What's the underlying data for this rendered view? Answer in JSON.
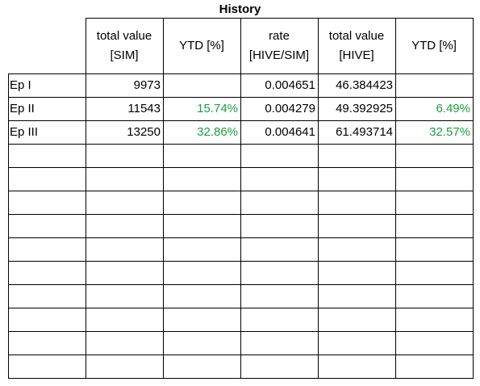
{
  "title": "History",
  "headers": {
    "col1": [
      "total value",
      "[SIM]"
    ],
    "col2": [
      "YTD [%]"
    ],
    "col3": [
      "rate",
      "[HIVE/SIM]"
    ],
    "col4": [
      "total value",
      "[HIVE]"
    ],
    "col5": [
      "YTD [%]"
    ]
  },
  "rows": [
    {
      "label": "Ep I",
      "sim_value": "9973",
      "sim_ytd": "",
      "rate": "0.004651",
      "hive_value": "46.384423",
      "hive_ytd": ""
    },
    {
      "label": "Ep II",
      "sim_value": "11543",
      "sim_ytd": "15.74%",
      "rate": "0.004279",
      "hive_value": "49.392925",
      "hive_ytd": "6.49%"
    },
    {
      "label": "Ep III",
      "sim_value": "13250",
      "sim_ytd": "32.86%",
      "rate": "0.004641",
      "hive_value": "61.493714",
      "hive_ytd": "32.57%"
    }
  ],
  "empty_row_count": 10,
  "colors": {
    "positive": "#1e9e3e",
    "grid": "#000000"
  }
}
